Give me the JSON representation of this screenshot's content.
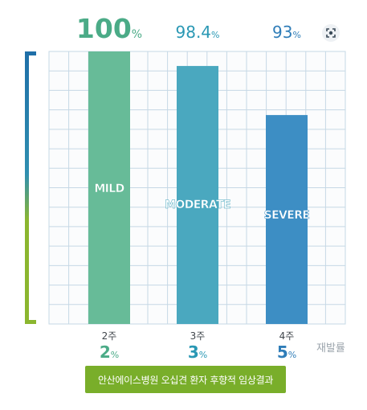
{
  "colors": {
    "grid_line": "#c6d8e5",
    "grid_bg": "#fbfcfd",
    "mild": "#67bb98",
    "moderate": "#4aa8bf",
    "severe": "#3d8ec4",
    "bracket_top": "#1f6fa8",
    "bracket_bottom": "#8bb62f",
    "recurrence_green": "#4bab87",
    "recurrence_teal": "#2a98b4",
    "recurrence_blue": "#2f7db8",
    "badge_bg": "#79ae2a"
  },
  "icons": {
    "expand": "focus-expand-icon"
  },
  "chart_data": {
    "type": "bar",
    "categories": [
      "MILD",
      "MODERATE",
      "SEVERE"
    ],
    "values": [
      100,
      98.4,
      93
    ],
    "value_unit": "%",
    "ylim": [
      70,
      100
    ],
    "grid": true,
    "x_labels": [
      "2주",
      "3주",
      "4주"
    ],
    "recurrence_values": [
      2,
      3,
      5
    ],
    "recurrence_unit": "%",
    "recurrence_label": "재발률"
  },
  "footer": {
    "badge_text": "안산에이스병원 오십견 환자 후향적 임상결과"
  }
}
